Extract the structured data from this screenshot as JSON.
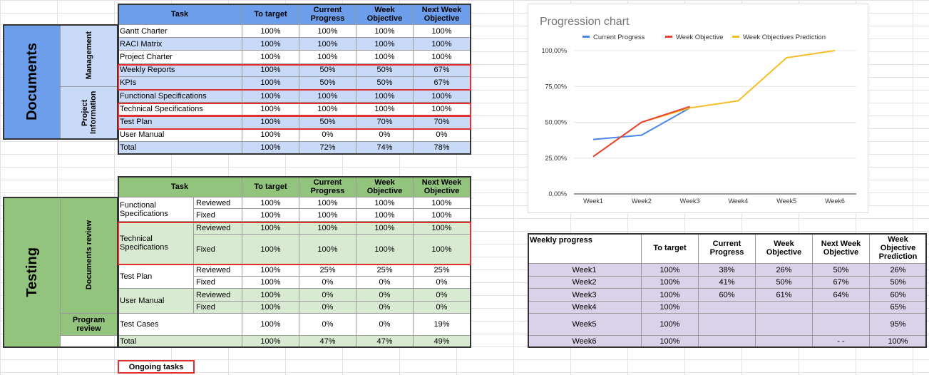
{
  "colors": {
    "doc_header": "#6d9eeb",
    "doc_light": "#c9daf8",
    "doc_side": "#6d9eeb",
    "test_header": "#93c47d",
    "test_light": "#d9ead3",
    "test_side": "#93c47d",
    "week_light": "#d9d2e9",
    "red": "#e03030",
    "series_current": "#4a86e8",
    "series_objective": "#e94335",
    "series_prediction": "#f6bf26"
  },
  "documents": {
    "section_label": "Documents",
    "group_management": "Management",
    "group_project": "Project Information",
    "header": {
      "task": "Task",
      "to_target": "To target",
      "current": "Current Progress",
      "week_obj": "Week Objective",
      "next_week": "Next Week Objective"
    },
    "rows": [
      {
        "task": "Gantt Charter",
        "to_target": "100%",
        "current": "100%",
        "week_obj": "100%",
        "next_week": "100%"
      },
      {
        "task": "RACI Matrix",
        "to_target": "100%",
        "current": "100%",
        "week_obj": "100%",
        "next_week": "100%"
      },
      {
        "task": "Project Charter",
        "to_target": "100%",
        "current": "100%",
        "week_obj": "100%",
        "next_week": "100%"
      },
      {
        "task": "Weekly Reports",
        "to_target": "100%",
        "current": "50%",
        "week_obj": "50%",
        "next_week": "67%"
      },
      {
        "task": "KPIs",
        "to_target": "100%",
        "current": "50%",
        "week_obj": "50%",
        "next_week": "67%"
      },
      {
        "task": "Functional Specifications",
        "to_target": "100%",
        "current": "100%",
        "week_obj": "100%",
        "next_week": "100%"
      },
      {
        "task": "Technical Specifications",
        "to_target": "100%",
        "current": "100%",
        "week_obj": "100%",
        "next_week": "100%"
      },
      {
        "task": "Test Plan",
        "to_target": "100%",
        "current": "50%",
        "week_obj": "70%",
        "next_week": "70%"
      },
      {
        "task": "User Manual",
        "to_target": "100%",
        "current": "0%",
        "week_obj": "0%",
        "next_week": "0%"
      }
    ],
    "total": {
      "task": "Total",
      "to_target": "100%",
      "current": "72%",
      "week_obj": "74%",
      "next_week": "78%"
    }
  },
  "testing": {
    "section_label": "Testing",
    "group_docs": "Documents review",
    "group_program": "Program review",
    "header": {
      "task": "Task",
      "to_target": "To target",
      "current": "Current Progress",
      "week_obj": "Week Objective",
      "next_week": "Next Week Objective"
    },
    "rows": [
      {
        "task": "Functional Specifications",
        "status": "Reviewed",
        "to_target": "100%",
        "current": "100%",
        "week_obj": "100%",
        "next_week": "100%"
      },
      {
        "task": "",
        "status": "Fixed",
        "to_target": "100%",
        "current": "100%",
        "week_obj": "100%",
        "next_week": "100%"
      },
      {
        "task": "Technical Specifications",
        "status": "Reviewed",
        "to_target": "100%",
        "current": "100%",
        "week_obj": "100%",
        "next_week": "100%"
      },
      {
        "task": "",
        "status": "Fixed",
        "to_target": "100%",
        "current": "100%",
        "week_obj": "100%",
        "next_week": "100%"
      },
      {
        "task": "Test Plan",
        "status": "Reviewed",
        "to_target": "100%",
        "current": "25%",
        "week_obj": "25%",
        "next_week": "25%"
      },
      {
        "task": "",
        "status": "Fixed",
        "to_target": "100%",
        "current": "0%",
        "week_obj": "0%",
        "next_week": "0%"
      },
      {
        "task": "User Manual",
        "status": "Reviewed",
        "to_target": "100%",
        "current": "0%",
        "week_obj": "0%",
        "next_week": "0%"
      },
      {
        "task": "",
        "status": "Fixed",
        "to_target": "100%",
        "current": "0%",
        "week_obj": "0%",
        "next_week": "0%"
      },
      {
        "task": "Test Cases",
        "status": "",
        "to_target": "100%",
        "current": "0%",
        "week_obj": "0%",
        "next_week": "19%"
      }
    ],
    "total": {
      "task": "Total",
      "to_target": "100%",
      "current": "47%",
      "week_obj": "47%",
      "next_week": "49%"
    }
  },
  "legend_note": "Ongoing tasks",
  "weekly": {
    "header": {
      "label": "Weekly progress",
      "to_target": "To target",
      "current": "Current Progress",
      "week_obj": "Week Objective",
      "next_week": "Next Week Objective",
      "prediction": "Week Objective Prediction"
    },
    "rows": [
      {
        "week": "Week1",
        "to_target": "100%",
        "current": "38%",
        "week_obj": "26%",
        "next_week": "50%",
        "prediction": "26%"
      },
      {
        "week": "Week2",
        "to_target": "100%",
        "current": "41%",
        "week_obj": "50%",
        "next_week": "67%",
        "prediction": "50%"
      },
      {
        "week": "Week3",
        "to_target": "100%",
        "current": "60%",
        "week_obj": "61%",
        "next_week": "64%",
        "prediction": "60%"
      },
      {
        "week": "Week4",
        "to_target": "100%",
        "current": "",
        "week_obj": "",
        "next_week": "",
        "prediction": "65%"
      },
      {
        "week": "Week5",
        "to_target": "100%",
        "current": "",
        "week_obj": "",
        "next_week": "",
        "prediction": "95%"
      },
      {
        "week": "Week6",
        "to_target": "100%",
        "current": "",
        "week_obj": "",
        "next_week": "- -",
        "prediction": "100%"
      }
    ]
  },
  "chart_data": {
    "type": "line",
    "title": "Progression chart",
    "categories": [
      "Week1",
      "Week2",
      "Week3",
      "Week4",
      "Week5",
      "Week6"
    ],
    "y_tick_labels": [
      "0,00%",
      "25,00%",
      "50,00%",
      "75,00%",
      "100,00%"
    ],
    "ylim": [
      0,
      100
    ],
    "legend_position": "top",
    "series": [
      {
        "name": "Current Progress",
        "values": [
          38,
          41,
          60,
          null,
          null,
          null
        ]
      },
      {
        "name": "Week Objective",
        "values": [
          26,
          50,
          61,
          null,
          null,
          null
        ]
      },
      {
        "name": "Week Objectives Prediction",
        "values": [
          26,
          50,
          60,
          65,
          95,
          100
        ]
      }
    ]
  }
}
